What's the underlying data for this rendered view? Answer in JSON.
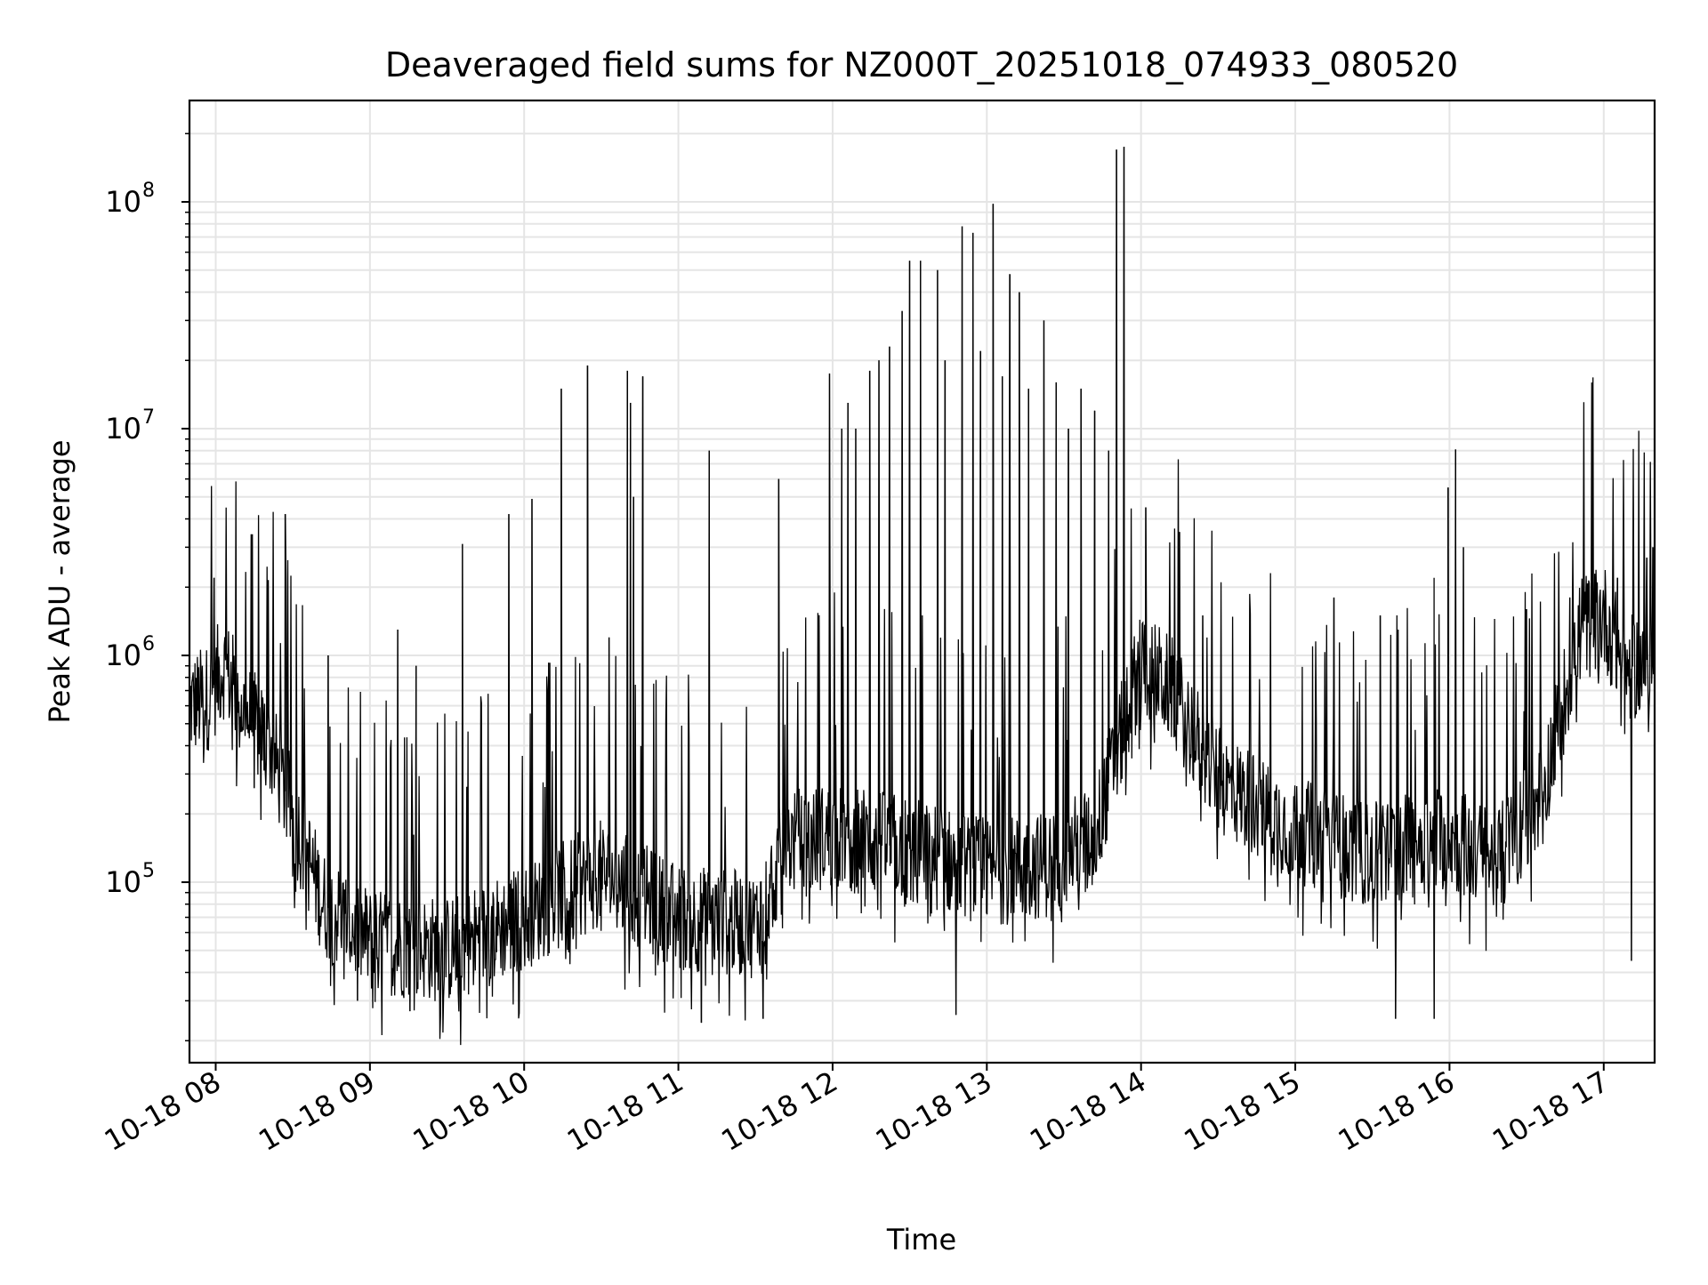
{
  "chart_data": {
    "type": "line",
    "title": "Deaveraged field sums for NZ000T_20251018_074933_080520",
    "xlabel": "Time",
    "ylabel": "Peak ADU - average",
    "yscale": "log",
    "ylim": [
      16000,
      280000000
    ],
    "xlim_hours": [
      7.83,
      17.33
    ],
    "grid": true,
    "line_color": "#000000",
    "grid_color": "#e5e5e5",
    "x_ticks": [
      {
        "hour": 8,
        "label": "10-18 08"
      },
      {
        "hour": 9,
        "label": "10-18 09"
      },
      {
        "hour": 10,
        "label": "10-18 10"
      },
      {
        "hour": 11,
        "label": "10-18 11"
      },
      {
        "hour": 12,
        "label": "10-18 12"
      },
      {
        "hour": 13,
        "label": "10-18 13"
      },
      {
        "hour": 14,
        "label": "10-18 14"
      },
      {
        "hour": 15,
        "label": "10-18 15"
      },
      {
        "hour": 16,
        "label": "10-18 16"
      },
      {
        "hour": 17,
        "label": "10-18 17"
      }
    ],
    "y_ticks": [
      {
        "value": 100000,
        "base": "10",
        "exp": "5"
      },
      {
        "value": 1000000,
        "base": "10",
        "exp": "6"
      },
      {
        "value": 10000000,
        "base": "10",
        "exp": "7"
      },
      {
        "value": 100000000,
        "base": "10",
        "exp": "8"
      }
    ],
    "baseline": [
      [
        7.83,
        600000
      ],
      [
        7.95,
        650000
      ],
      [
        8.05,
        900000
      ],
      [
        8.2,
        550000
      ],
      [
        8.35,
        400000
      ],
      [
        8.5,
        200000
      ],
      [
        8.7,
        80000
      ],
      [
        9.0,
        55000
      ],
      [
        9.5,
        50000
      ],
      [
        10.0,
        70000
      ],
      [
        10.5,
        110000
      ],
      [
        11.0,
        70000
      ],
      [
        11.5,
        65000
      ],
      [
        11.7,
        150000
      ],
      [
        12.0,
        160000
      ],
      [
        12.5,
        140000
      ],
      [
        13.0,
        110000
      ],
      [
        13.4,
        120000
      ],
      [
        13.7,
        160000
      ],
      [
        14.0,
        950000
      ],
      [
        14.2,
        700000
      ],
      [
        14.5,
        280000
      ],
      [
        15.0,
        170000
      ],
      [
        15.5,
        130000
      ],
      [
        15.8,
        150000
      ],
      [
        16.0,
        160000
      ],
      [
        16.3,
        120000
      ],
      [
        16.6,
        250000
      ],
      [
        16.85,
        1300000
      ],
      [
        17.0,
        1500000
      ],
      [
        17.15,
        850000
      ],
      [
        17.33,
        1000000
      ]
    ],
    "spikes": [
      {
        "hour": 7.99,
        "value": 2200000
      },
      {
        "hour": 8.45,
        "value": 4200000
      },
      {
        "hour": 8.73,
        "value": 1000000
      },
      {
        "hour": 9.18,
        "value": 1300000
      },
      {
        "hour": 9.3,
        "value": 900000
      },
      {
        "hour": 9.6,
        "value": 3100000
      },
      {
        "hour": 9.9,
        "value": 4200000
      },
      {
        "hour": 10.05,
        "value": 4900000
      },
      {
        "hour": 10.24,
        "value": 15000000
      },
      {
        "hour": 10.41,
        "value": 19000000
      },
      {
        "hour": 10.55,
        "value": 1200000
      },
      {
        "hour": 10.67,
        "value": 18000000
      },
      {
        "hour": 10.69,
        "value": 13000000
      },
      {
        "hour": 10.71,
        "value": 5000000
      },
      {
        "hour": 10.77,
        "value": 17000000
      },
      {
        "hour": 11.2,
        "value": 8000000
      },
      {
        "hour": 11.65,
        "value": 6000000
      },
      {
        "hour": 11.98,
        "value": 17500000
      },
      {
        "hour": 12.06,
        "value": 10000000
      },
      {
        "hour": 12.1,
        "value": 13000000
      },
      {
        "hour": 12.15,
        "value": 10000000
      },
      {
        "hour": 12.24,
        "value": 18000000
      },
      {
        "hour": 12.3,
        "value": 20000000
      },
      {
        "hour": 12.37,
        "value": 23000000
      },
      {
        "hour": 12.45,
        "value": 33000000
      },
      {
        "hour": 12.5,
        "value": 55000000
      },
      {
        "hour": 12.57,
        "value": 55000000
      },
      {
        "hour": 12.68,
        "value": 50000000
      },
      {
        "hour": 12.73,
        "value": 20000000
      },
      {
        "hour": 12.84,
        "value": 78000000
      },
      {
        "hour": 12.91,
        "value": 73000000
      },
      {
        "hour": 12.96,
        "value": 22000000
      },
      {
        "hour": 13.04,
        "value": 98000000
      },
      {
        "hour": 13.1,
        "value": 17000000
      },
      {
        "hour": 13.15,
        "value": 48000000
      },
      {
        "hour": 13.21,
        "value": 40000000
      },
      {
        "hour": 13.27,
        "value": 15000000
      },
      {
        "hour": 13.37,
        "value": 30000000
      },
      {
        "hour": 13.45,
        "value": 16000000
      },
      {
        "hour": 13.53,
        "value": 10000000
      },
      {
        "hour": 13.61,
        "value": 15000000
      },
      {
        "hour": 13.7,
        "value": 12000000
      },
      {
        "hour": 13.79,
        "value": 8000000
      },
      {
        "hour": 13.84,
        "value": 170000000
      },
      {
        "hour": 13.89,
        "value": 175000000
      },
      {
        "hour": 14.03,
        "value": 4500000
      },
      {
        "hour": 14.25,
        "value": 3500000
      },
      {
        "hour": 14.4,
        "value": 1500000
      },
      {
        "hour": 15.25,
        "value": 1800000
      },
      {
        "hour": 15.55,
        "value": 1500000
      },
      {
        "hour": 15.9,
        "value": 2200000
      },
      {
        "hour": 15.99,
        "value": 5500000
      },
      {
        "hour": 16.04,
        "value": 8100000
      },
      {
        "hour": 16.09,
        "value": 3000000
      },
      {
        "hour": 16.5,
        "value": 1600000
      },
      {
        "hour": 16.78,
        "value": 1800000
      },
      {
        "hour": 17.09,
        "value": 2200000
      },
      {
        "hour": 17.28,
        "value": 2700000
      },
      {
        "hour": 17.32,
        "value": 3000000
      }
    ],
    "dips": [
      {
        "hour": 8.25,
        "value": 260000
      },
      {
        "hour": 8.92,
        "value": 30000
      },
      {
        "hour": 9.26,
        "value": 27000
      },
      {
        "hour": 11.15,
        "value": 24000
      },
      {
        "hour": 11.55,
        "value": 25000
      },
      {
        "hour": 12.8,
        "value": 26000
      },
      {
        "hour": 15.65,
        "value": 25000
      },
      {
        "hour": 15.9,
        "value": 25000
      },
      {
        "hour": 17.18,
        "value": 45000
      }
    ]
  }
}
